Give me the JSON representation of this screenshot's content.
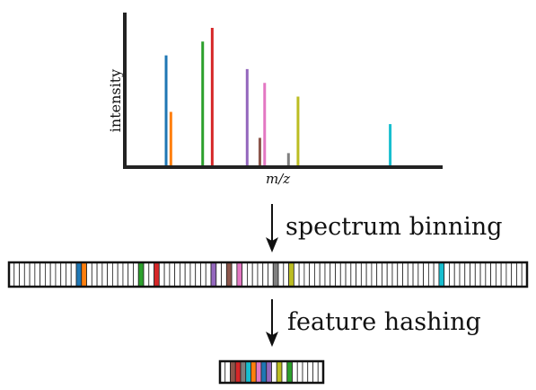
{
  "spectrum": {
    "y_label": "intensity",
    "x_label": "m/z",
    "peaks": [
      {
        "pos": 0.13,
        "height": 0.72,
        "color": "#1f77b4"
      },
      {
        "pos": 0.145,
        "height": 0.35,
        "color": "#ff7f0e"
      },
      {
        "pos": 0.245,
        "height": 0.81,
        "color": "#2ca02c"
      },
      {
        "pos": 0.275,
        "height": 0.9,
        "color": "#d62728"
      },
      {
        "pos": 0.385,
        "height": 0.63,
        "color": "#9467bd"
      },
      {
        "pos": 0.425,
        "height": 0.18,
        "color": "#8c564b"
      },
      {
        "pos": 0.44,
        "height": 0.54,
        "color": "#e377c2"
      },
      {
        "pos": 0.515,
        "height": 0.08,
        "color": "#7f7f7f"
      },
      {
        "pos": 0.545,
        "height": 0.45,
        "color": "#bcbd22"
      },
      {
        "pos": 0.835,
        "height": 0.27,
        "color": "#17becf"
      }
    ]
  },
  "step1_label": "spectrum binning",
  "step2_label": "feature hashing",
  "binned_vector": {
    "bins": 100,
    "colored": [
      {
        "bin": 13,
        "color": "#1f77b4"
      },
      {
        "bin": 14,
        "color": "#ff7f0e"
      },
      {
        "bin": 25,
        "color": "#2ca02c"
      },
      {
        "bin": 28,
        "color": "#d62728"
      },
      {
        "bin": 39,
        "color": "#9467bd"
      },
      {
        "bin": 42,
        "color": "#8c564b"
      },
      {
        "bin": 44,
        "color": "#e377c2"
      },
      {
        "bin": 51,
        "color": "#7f7f7f"
      },
      {
        "bin": 54,
        "color": "#bcbd22"
      },
      {
        "bin": 83,
        "color": "#17becf"
      }
    ]
  },
  "hashed_vector": {
    "bins": 20,
    "colored": [
      {
        "bin": 2,
        "color": "#8c564b"
      },
      {
        "bin": 3,
        "color": "#d62728"
      },
      {
        "bin": 4,
        "color": "#7f7f7f"
      },
      {
        "bin": 5,
        "color": "#17becf"
      },
      {
        "bin": 6,
        "color": "#ff7f0e"
      },
      {
        "bin": 7,
        "color": "#e377c2"
      },
      {
        "bin": 8,
        "color": "#1f77b4"
      },
      {
        "bin": 9,
        "color": "#9467bd"
      },
      {
        "bin": 11,
        "color": "#bcbd22"
      },
      {
        "bin": 13,
        "color": "#2ca02c"
      }
    ]
  }
}
